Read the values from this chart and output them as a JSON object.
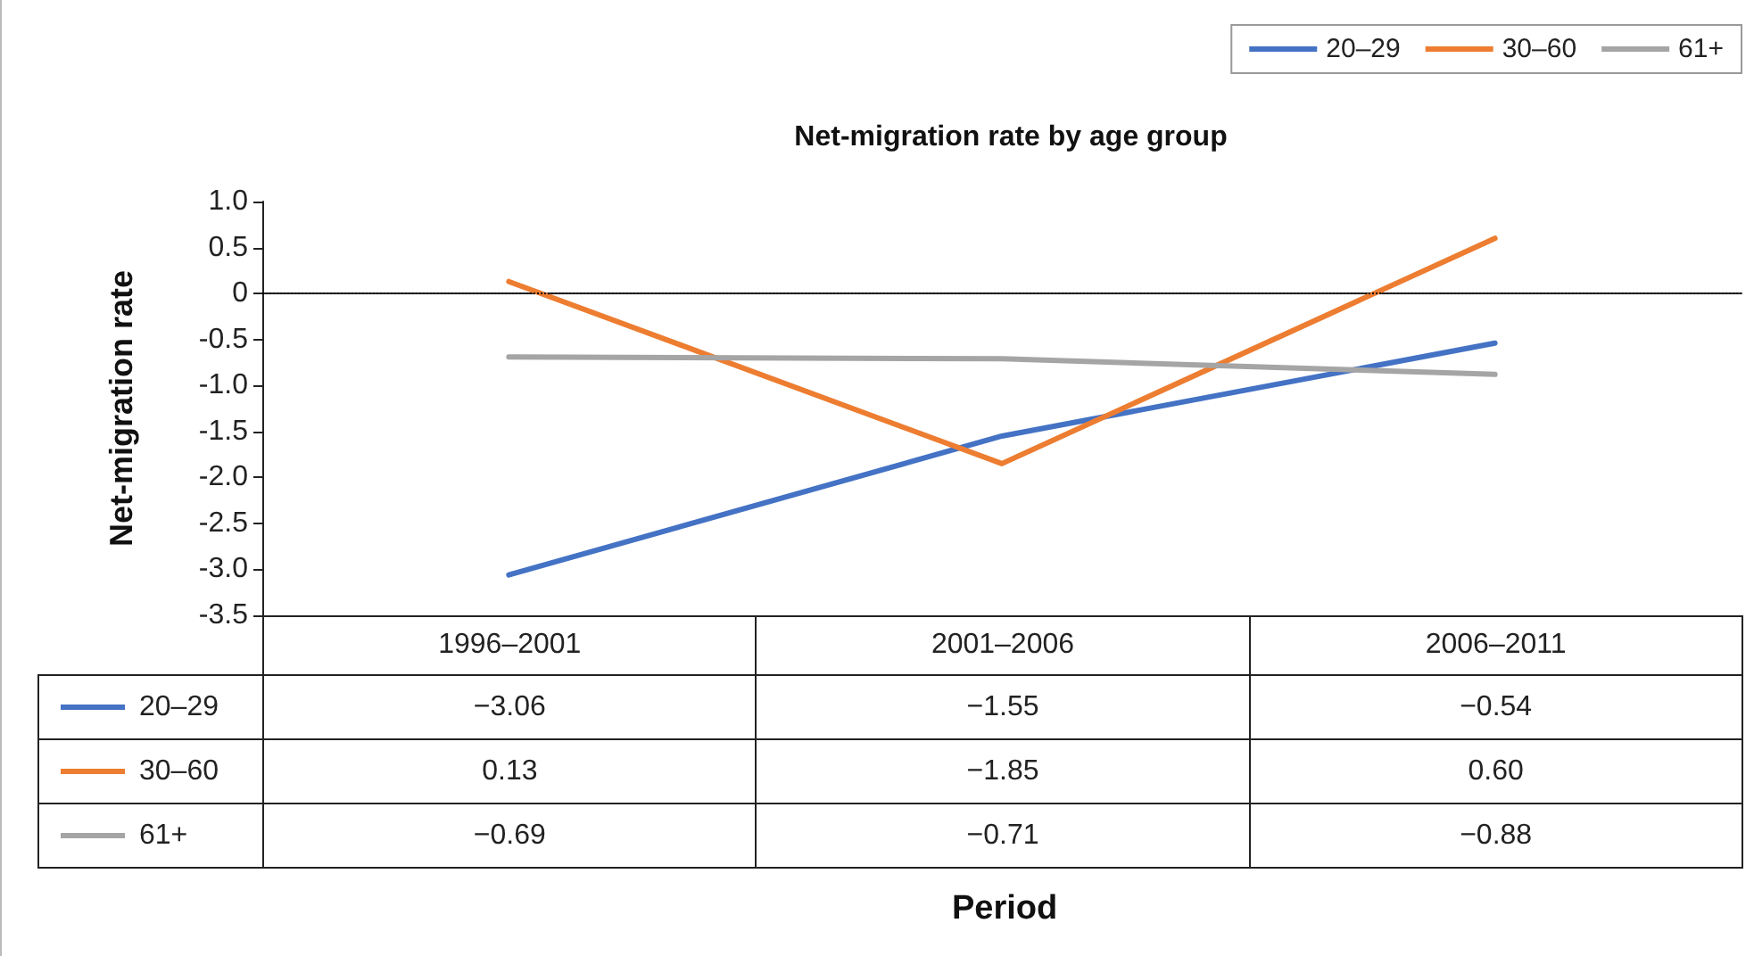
{
  "chart_data": {
    "type": "line",
    "title": "Net-migration rate by age group",
    "annotations": [
      "Period"
    ],
    "ylabel": "Net-migration rate",
    "categories": [
      "1996–2001",
      "2001–2006",
      "2006–2011"
    ],
    "series": [
      {
        "name": "20–29",
        "color": "#4472c4",
        "values": [
          -3.06,
          -1.55,
          -0.54
        ],
        "value_labels": [
          "−3.06",
          "−1.55",
          "−0.54"
        ]
      },
      {
        "name": "30–60",
        "color": "#ed7d31",
        "values": [
          0.13,
          -1.85,
          0.6
        ],
        "value_labels": [
          "0.13",
          "−1.85",
          "0.60"
        ]
      },
      {
        "name": "61+",
        "color": "#a5a5a5",
        "values": [
          -0.69,
          -0.71,
          -0.88
        ],
        "value_labels": [
          "−0.69",
          "−0.71",
          "−0.88"
        ]
      }
    ],
    "ylim": [
      -3.5,
      1.0
    ],
    "yticks": [
      {
        "value": 1,
        "label": "1.0"
      },
      0.5,
      0,
      -0.5,
      {
        "value": -1,
        "label": "-1.0"
      },
      -1.5,
      {
        "value": -2,
        "label": "-2.0"
      },
      -2.5,
      {
        "value": -3,
        "label": "-3.0"
      },
      -3.5
    ],
    "ref_lines": [
      {
        "axis": "y",
        "value": 0,
        "line_style": "dotted",
        "color": "#000000"
      }
    ],
    "legend": "top right"
  }
}
